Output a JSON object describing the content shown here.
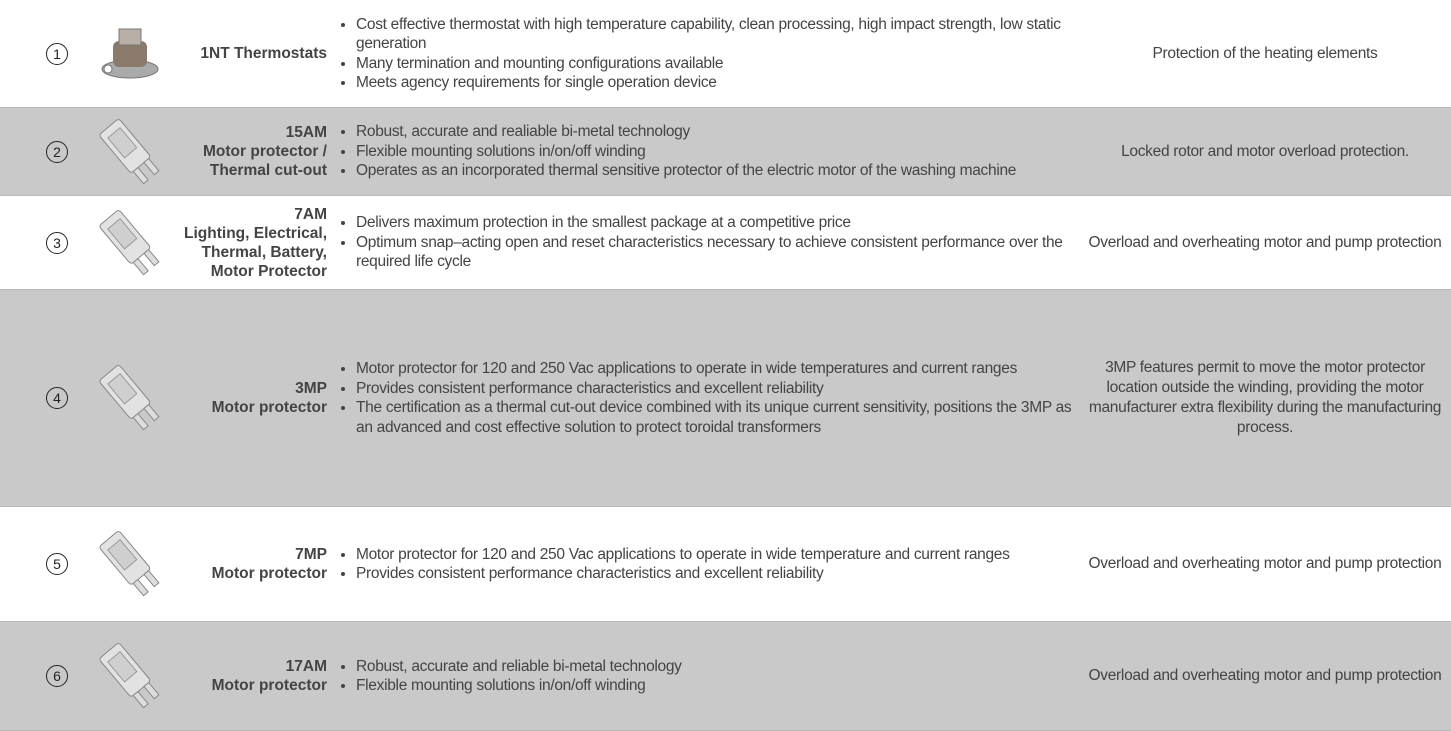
{
  "rows": [
    {
      "number": "1",
      "name": [
        "1NT Thermostats"
      ],
      "bullets": [
        "Cost effective thermostat with high temperature capability, clean processing, high impact strength, low static generation",
        "Many termination and mounting configurations available",
        "Meets agency requirements for single operation device"
      ],
      "application": "Protection of the heating elements"
    },
    {
      "number": "2",
      "name": [
        "15AM",
        "Motor protector /",
        "Thermal cut-out"
      ],
      "bullets": [
        "Robust, accurate and realiable bi-metal technology",
        "Flexible mounting solutions in/on/off winding",
        "Operates as an incorporated thermal sensitive protector of the electric motor of the washing machine"
      ],
      "application": "Locked rotor and motor overload protection."
    },
    {
      "number": "3",
      "name": [
        "7AM",
        "Lighting, Electrical,",
        "Thermal, Battery,",
        "Motor Protector"
      ],
      "bullets": [
        "Delivers maximum protection in the smallest package at a competitive price",
        "Optimum snap–acting open and reset characteristics necessary to achieve consistent performance over the required life cycle"
      ],
      "application": "Overload and overheating motor and pump protection"
    },
    {
      "number": "4",
      "name": [
        "3MP",
        "Motor protector"
      ],
      "bullets": [
        "Motor protector for 120 and 250 Vac applications to operate in wide temperatures and current ranges",
        "Provides consistent performance characteristics and excellent reliability",
        "The certification as a thermal cut-out device combined with its unique current sensitivity, positions the 3MP as an advanced and cost effective solution to protect toroidal transformers"
      ],
      "application": "3MP features permit to move the motor protector location outside the winding, providing the motor manufacturer extra flexibility during the manufacturing process."
    },
    {
      "number": "5",
      "name": [
        "7MP",
        "Motor protector"
      ],
      "bullets": [
        "Motor protector for 120 and 250 Vac applications to operate in wide temperature and current ranges",
        "Provides consistent performance characteristics and excellent reliability"
      ],
      "application": "Overload and overheating motor and pump protection"
    },
    {
      "number": "6",
      "name": [
        "17AM",
        "Motor protector"
      ],
      "bullets": [
        "Robust, accurate and reliable bi-metal technology",
        "Flexible mounting solutions in/on/off winding"
      ],
      "application": "Overload and overheating motor and pump protection"
    }
  ]
}
